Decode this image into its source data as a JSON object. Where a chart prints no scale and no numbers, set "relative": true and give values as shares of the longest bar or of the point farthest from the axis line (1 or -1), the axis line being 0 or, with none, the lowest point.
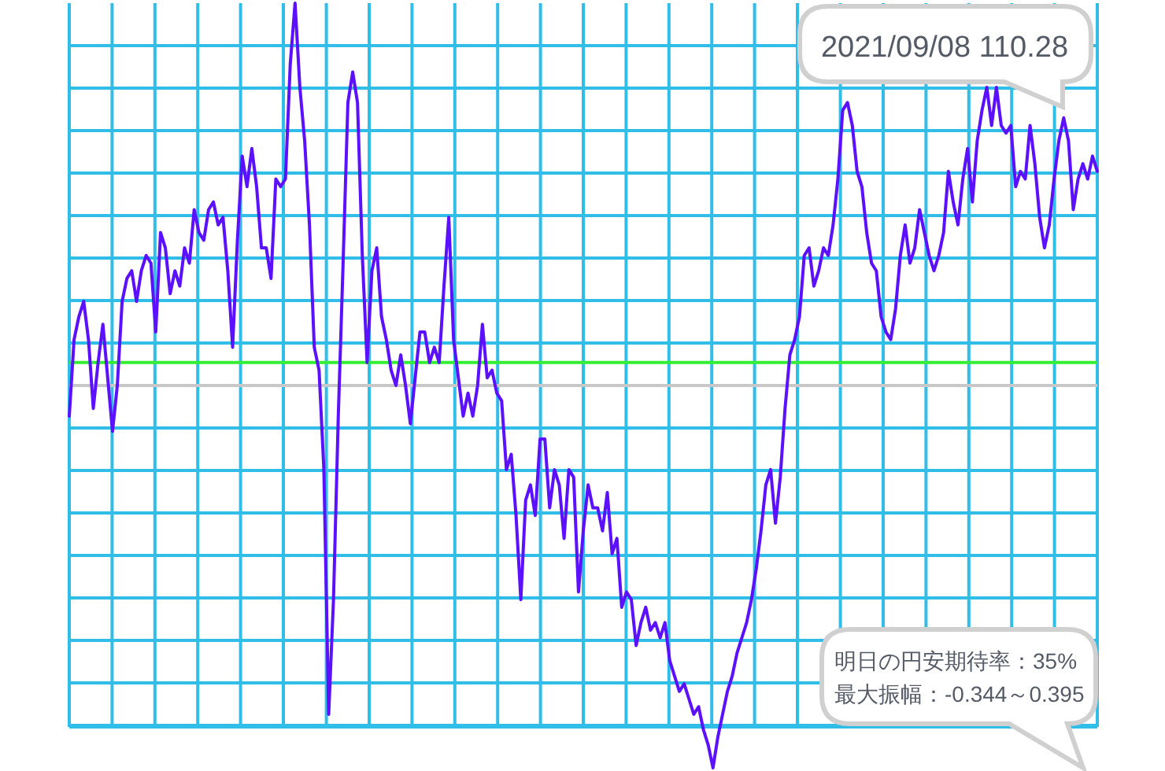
{
  "chart_data": {
    "type": "line",
    "relative": true,
    "grid": true,
    "categories": [
      null,
      null,
      null,
      null,
      null,
      null,
      null,
      null,
      null,
      null,
      null,
      null,
      null,
      null,
      null,
      null,
      null,
      null,
      null,
      null,
      null,
      null,
      null,
      null,
      null,
      null,
      null,
      null,
      null,
      null,
      null,
      null,
      null,
      null,
      null,
      null,
      null,
      null,
      null,
      null,
      null,
      null,
      null,
      null,
      null,
      null,
      null,
      null,
      null,
      null,
      null,
      null,
      null,
      null,
      null,
      null,
      null,
      null,
      null,
      null,
      null,
      null,
      null,
      null,
      null,
      null,
      null,
      null,
      null,
      null,
      null,
      null,
      null,
      null,
      null,
      null,
      null,
      null,
      null,
      null,
      null,
      null,
      null,
      null,
      null,
      null,
      null,
      null,
      null,
      null,
      null,
      null,
      null,
      null,
      null,
      null,
      null,
      null,
      null,
      null,
      null,
      null,
      null,
      null,
      null,
      null,
      null,
      null,
      null,
      null,
      null,
      null,
      null,
      null,
      null,
      null,
      null,
      null,
      null,
      null,
      null,
      null,
      null,
      null,
      null,
      null,
      null,
      null,
      null,
      null,
      null,
      null,
      null,
      null,
      null,
      null,
      null,
      null,
      null,
      null,
      null,
      null,
      null,
      null,
      null,
      null,
      null,
      null,
      null,
      null,
      null,
      null,
      null,
      null,
      null,
      null,
      null,
      null,
      null,
      null,
      null,
      null,
      null,
      null,
      null,
      null,
      null,
      null,
      null,
      null,
      null,
      null,
      null,
      null,
      null,
      null,
      null,
      null,
      null,
      null,
      null,
      null,
      null,
      null,
      null,
      null,
      null,
      null,
      null,
      null,
      null,
      null,
      null,
      null,
      null,
      null,
      null,
      null,
      null,
      null,
      null,
      null,
      null,
      null,
      null,
      null,
      null,
      null,
      null,
      null,
      null,
      null,
      null,
      null,
      null
    ],
    "series": [
      {
        "color": "#5b10ff",
        "values": [
          0.46,
          0.56,
          0.59,
          0.61,
          0.56,
          0.47,
          0.53,
          0.58,
          0.51,
          0.44,
          0.5,
          0.61,
          0.64,
          0.65,
          0.61,
          0.65,
          0.67,
          0.66,
          0.57,
          0.7,
          0.68,
          0.62,
          0.65,
          0.63,
          0.68,
          0.66,
          0.73,
          0.7,
          0.69,
          0.73,
          0.74,
          0.71,
          0.72,
          0.65,
          0.55,
          0.69,
          0.8,
          0.76,
          0.81,
          0.76,
          0.68,
          0.68,
          0.64,
          0.77,
          0.76,
          0.77,
          0.92,
          1,
          0.89,
          0.82,
          0.71,
          0.55,
          0.52,
          0.39,
          0.07,
          0.22,
          0.46,
          0.66,
          0.87,
          0.91,
          0.87,
          0.67,
          0.53,
          0.65,
          0.68,
          0.59,
          0.56,
          0.52,
          0.5,
          0.54,
          0.5,
          0.45,
          0.51,
          0.57,
          0.57,
          0.53,
          0.55,
          0.53,
          0.63,
          0.72,
          0.56,
          0.51,
          0.46,
          0.49,
          0.46,
          0.5,
          0.58,
          0.51,
          0.52,
          0.49,
          0.48,
          0.39,
          0.41,
          0.33,
          0.22,
          0.35,
          0.37,
          0.33,
          0.43,
          0.43,
          0.34,
          0.39,
          0.37,
          0.3,
          0.39,
          0.38,
          0.23,
          0.31,
          0.37,
          0.34,
          0.34,
          0.31,
          0.36,
          0.28,
          0.3,
          0.21,
          0.23,
          0.22,
          0.16,
          0.19,
          0.21,
          0.18,
          0.19,
          0.17,
          0.19,
          0.14,
          0.12,
          0.1,
          0.11,
          0.09,
          0.07,
          0.08,
          0.05,
          0.03,
          0,
          0.04,
          0.07,
          0.1,
          0.12,
          0.15,
          0.17,
          0.19,
          0.22,
          0.26,
          0.31,
          0.37,
          0.39,
          0.32,
          0.38,
          0.47,
          0.54,
          0.56,
          0.59,
          0.67,
          0.68,
          0.63,
          0.65,
          0.68,
          0.67,
          0.71,
          0.77,
          0.86,
          0.87,
          0.84,
          0.78,
          0.76,
          0.7,
          0.66,
          0.65,
          0.59,
          0.57,
          0.56,
          0.6,
          0.67,
          0.71,
          0.66,
          0.68,
          0.73,
          0.7,
          0.67,
          0.65,
          0.67,
          0.7,
          0.78,
          0.74,
          0.71,
          0.77,
          0.81,
          0.74,
          0.82,
          0.86,
          0.89,
          0.84,
          0.89,
          0.84,
          0.83,
          0.84,
          0.76,
          0.78,
          0.77,
          0.84,
          0.79,
          0.72,
          0.68,
          0.71,
          0.77,
          0.82,
          0.85,
          0.82,
          0.73,
          0.77,
          0.79,
          0.77,
          0.8,
          0.78
        ]
      }
    ],
    "ref_lines": [
      {
        "axis": "y",
        "value": 0.5,
        "color": "#c8c8c8"
      },
      {
        "axis": "y",
        "value": 0.53,
        "color": "#33ee33"
      }
    ],
    "annotations": [
      "2021/09/08 110.28",
      "明日の円安期待率：35%",
      "最大振幅：-0.344～0.395"
    ]
  }
}
